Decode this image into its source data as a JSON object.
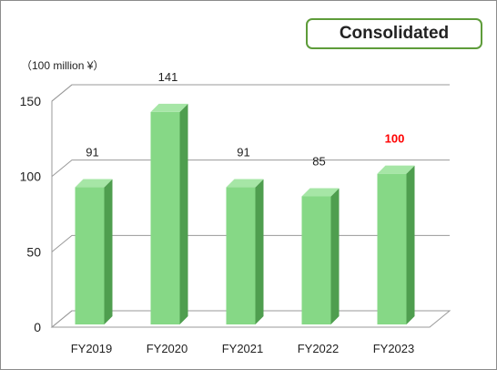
{
  "badge": {
    "label": "Consolidated"
  },
  "colors": {
    "bar_front": "#86d886",
    "bar_side": "#4f9e4f",
    "bar_top": "#a6e6a6",
    "gridline": "#9a9a9a",
    "highlight_label": "#ff0000",
    "badge_border": "#5e9c3a"
  },
  "chart_data": {
    "type": "bar",
    "style": "3d-column",
    "unit_label": "（100 million ¥）",
    "categories": [
      "FY2019",
      "FY2020",
      "FY2021",
      "FY2022",
      "FY2023"
    ],
    "values": [
      91,
      141,
      91,
      85,
      100
    ],
    "data_labels": [
      "91",
      "141",
      "91",
      "85",
      "100"
    ],
    "highlight_index": 4,
    "ylim": [
      0,
      150
    ],
    "yticks": [
      0,
      50,
      100,
      150
    ],
    "grid": true,
    "legend": "none",
    "title": "",
    "xlabel": "",
    "ylabel": ""
  }
}
